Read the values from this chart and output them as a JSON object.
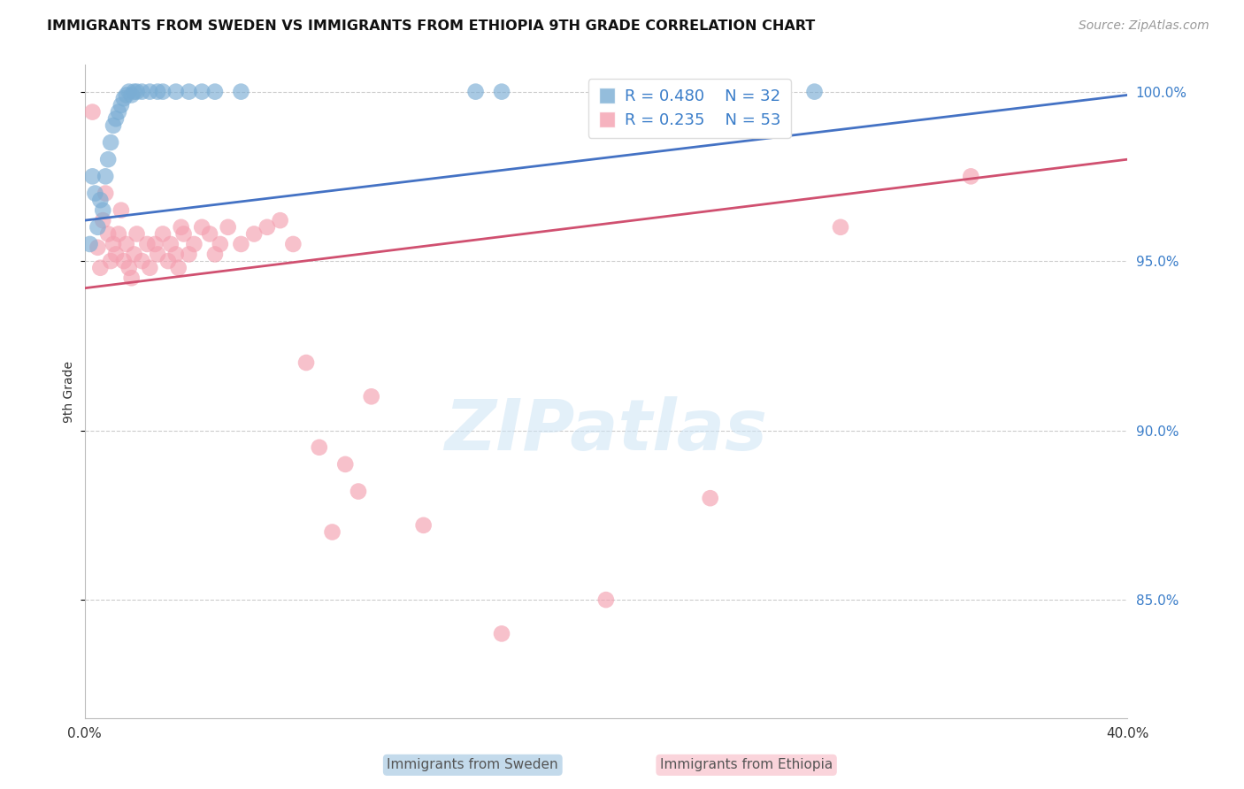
{
  "title": "IMMIGRANTS FROM SWEDEN VS IMMIGRANTS FROM ETHIOPIA 9TH GRADE CORRELATION CHART",
  "source": "Source: ZipAtlas.com",
  "ylabel": "9th Grade",
  "xlim": [
    0.0,
    0.4
  ],
  "ylim": [
    0.815,
    1.008
  ],
  "yticks": [
    0.85,
    0.9,
    0.95,
    1.0
  ],
  "ytick_labels": [
    "85.0%",
    "90.0%",
    "95.0%",
    "100.0%"
  ],
  "xticks": [
    0.0,
    0.05,
    0.1,
    0.15,
    0.2,
    0.25,
    0.3,
    0.35,
    0.4
  ],
  "xtick_labels": [
    "0.0%",
    "",
    "",
    "",
    "",
    "",
    "",
    "",
    "40.0%"
  ],
  "sweden_R": 0.48,
  "sweden_N": 32,
  "ethiopia_R": 0.235,
  "ethiopia_N": 53,
  "sweden_color": "#7aadd4",
  "ethiopia_color": "#f4a0b0",
  "line_sweden_color": "#4472c4",
  "line_ethiopia_color": "#d05070",
  "background_color": "#ffffff",
  "grid_color": "#cccccc",
  "sweden_x": [
    0.002,
    0.003,
    0.004,
    0.005,
    0.006,
    0.007,
    0.008,
    0.009,
    0.01,
    0.011,
    0.012,
    0.013,
    0.014,
    0.015,
    0.016,
    0.017,
    0.018,
    0.019,
    0.02,
    0.022,
    0.025,
    0.028,
    0.03,
    0.035,
    0.04,
    0.045,
    0.05,
    0.06,
    0.15,
    0.16,
    0.23,
    0.28
  ],
  "sweden_y": [
    0.955,
    0.975,
    0.97,
    0.96,
    0.968,
    0.965,
    0.975,
    0.98,
    0.985,
    0.99,
    0.992,
    0.994,
    0.996,
    0.998,
    0.999,
    1.0,
    0.999,
    1.0,
    1.0,
    1.0,
    1.0,
    1.0,
    1.0,
    1.0,
    1.0,
    1.0,
    1.0,
    1.0,
    1.0,
    1.0,
    1.0,
    1.0
  ],
  "ethiopia_x": [
    0.003,
    0.005,
    0.006,
    0.007,
    0.008,
    0.009,
    0.01,
    0.011,
    0.012,
    0.013,
    0.014,
    0.015,
    0.016,
    0.017,
    0.018,
    0.019,
    0.02,
    0.022,
    0.024,
    0.025,
    0.027,
    0.028,
    0.03,
    0.032,
    0.033,
    0.035,
    0.036,
    0.037,
    0.038,
    0.04,
    0.042,
    0.045,
    0.048,
    0.05,
    0.052,
    0.055,
    0.06,
    0.065,
    0.07,
    0.075,
    0.08,
    0.085,
    0.09,
    0.095,
    0.1,
    0.105,
    0.11,
    0.13,
    0.16,
    0.2,
    0.24,
    0.29,
    0.34
  ],
  "ethiopia_y": [
    0.994,
    0.954,
    0.948,
    0.962,
    0.97,
    0.958,
    0.95,
    0.955,
    0.952,
    0.958,
    0.965,
    0.95,
    0.955,
    0.948,
    0.945,
    0.952,
    0.958,
    0.95,
    0.955,
    0.948,
    0.955,
    0.952,
    0.958,
    0.95,
    0.955,
    0.952,
    0.948,
    0.96,
    0.958,
    0.952,
    0.955,
    0.96,
    0.958,
    0.952,
    0.955,
    0.96,
    0.955,
    0.958,
    0.96,
    0.962,
    0.955,
    0.92,
    0.895,
    0.87,
    0.89,
    0.882,
    0.91,
    0.872,
    0.84,
    0.85,
    0.88,
    0.96,
    0.975
  ],
  "sweden_line_x": [
    0.0,
    0.4
  ],
  "sweden_line_y": [
    0.962,
    0.999
  ],
  "ethiopia_line_x": [
    0.0,
    0.4
  ],
  "ethiopia_line_y": [
    0.942,
    0.98
  ]
}
